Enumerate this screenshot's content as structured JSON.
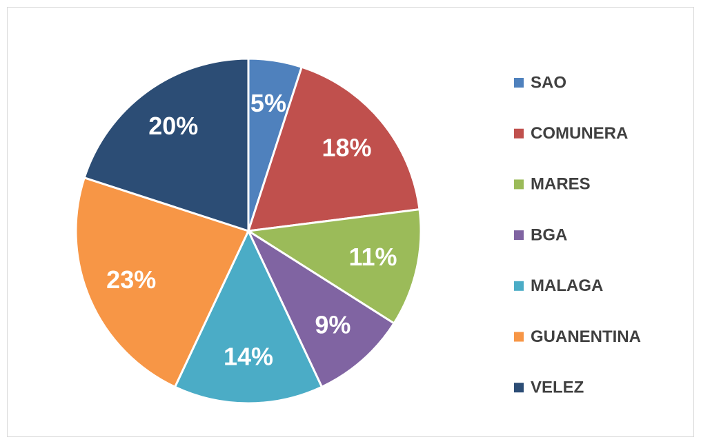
{
  "chart_data": {
    "type": "pie",
    "categories": [
      "SAO",
      "COMUNERA",
      "MARES",
      "BGA",
      "MALAGA",
      "GUANENTINA",
      "VELEZ"
    ],
    "values": [
      5,
      18,
      11,
      9,
      14,
      23,
      20
    ],
    "value_labels": [
      "5%",
      "18%",
      "11%",
      "9%",
      "14%",
      "23%",
      "20%"
    ],
    "colors": [
      "#4f81bd",
      "#c0504d",
      "#9bbb59",
      "#8064a2",
      "#4bacc6",
      "#f79646",
      "#2c4d75"
    ],
    "legend": "right"
  }
}
